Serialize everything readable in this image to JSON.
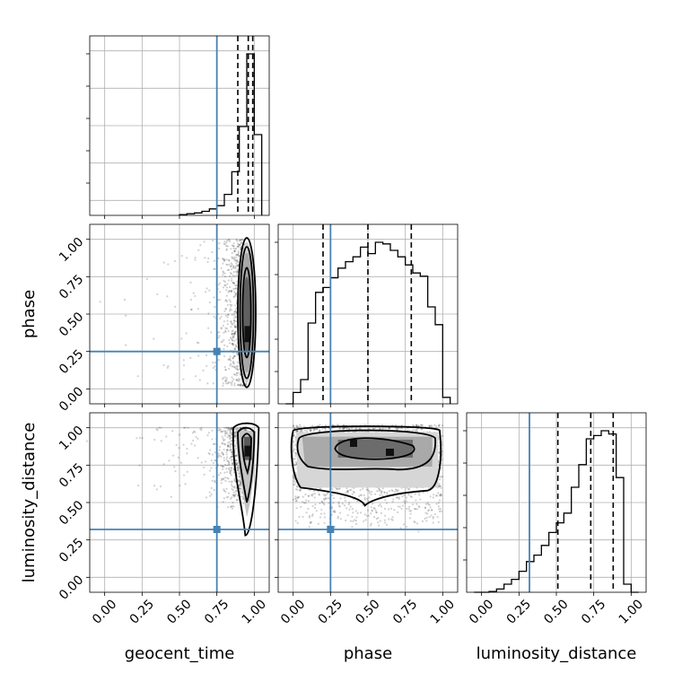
{
  "chart_data": {
    "type": "corner",
    "parameters": [
      "geocent_time",
      "phase",
      "luminosity_distance"
    ],
    "axis_labels": {
      "x": [
        "geocent_time",
        "phase",
        "luminosity_distance"
      ],
      "y": [
        "phase",
        "luminosity_distance"
      ]
    },
    "tick_values": [
      0.0,
      0.25,
      0.5,
      0.75,
      1.0
    ],
    "tick_labels": [
      "0.00",
      "0.25",
      "0.50",
      "0.75",
      "1.00"
    ],
    "axis_range": [
      -0.1,
      1.1
    ],
    "grid": true,
    "truth": {
      "geocent_time": 0.75,
      "phase": 0.25,
      "luminosity_distance": 0.32
    },
    "truth_color": "#4682b4",
    "histogram_color": "#000000",
    "histograms": [
      {
        "parameter": "geocent_time",
        "bin_edges": [
          0.5,
          0.55,
          0.6,
          0.65,
          0.7,
          0.75,
          0.8,
          0.85,
          0.9,
          0.95,
          1.0,
          1.05
        ],
        "density": [
          0.005,
          0.01,
          0.015,
          0.025,
          0.04,
          0.06,
          0.13,
          0.27,
          0.55,
          1.0,
          0.5
        ],
        "quantiles": [
          0.89,
          0.96,
          0.99
        ]
      },
      {
        "parameter": "phase",
        "bin_edges": [
          -0.05,
          0.0,
          0.05,
          0.1,
          0.15,
          0.2,
          0.25,
          0.3,
          0.35,
          0.4,
          0.45,
          0.5,
          0.55,
          0.6,
          0.65,
          0.7,
          0.75,
          0.8,
          0.85,
          0.9,
          0.95,
          1.0,
          1.05
        ],
        "density": [
          0.0,
          0.07,
          0.15,
          0.5,
          0.69,
          0.72,
          0.78,
          0.84,
          0.88,
          0.91,
          0.97,
          0.93,
          1.0,
          0.99,
          0.95,
          0.91,
          0.86,
          0.81,
          0.79,
          0.6,
          0.49,
          0.04
        ],
        "quantiles": [
          0.2,
          0.5,
          0.79
        ]
      },
      {
        "parameter": "luminosity_distance",
        "bin_edges": [
          -0.05,
          0.0,
          0.05,
          0.1,
          0.15,
          0.2,
          0.25,
          0.3,
          0.35,
          0.4,
          0.45,
          0.5,
          0.55,
          0.6,
          0.65,
          0.7,
          0.75,
          0.8,
          0.85,
          0.9,
          0.95,
          1.0,
          1.05
        ],
        "density": [
          0.0,
          0.0,
          0.005,
          0.02,
          0.05,
          0.08,
          0.13,
          0.19,
          0.23,
          0.29,
          0.37,
          0.43,
          0.49,
          0.65,
          0.79,
          0.95,
          0.97,
          1.0,
          0.98,
          0.71,
          0.05,
          0.0
        ],
        "quantiles": [
          0.51,
          0.73,
          0.88
        ]
      }
    ],
    "pairs": [
      {
        "x": "geocent_time",
        "y": "phase",
        "core": {
          "x_center": 0.95,
          "y_center": 0.5,
          "x_width": 0.08,
          "y_extent": [
            0.02,
            1.0
          ]
        }
      },
      {
        "x": "geocent_time",
        "y": "luminosity_distance",
        "core": {
          "x_center": 0.95,
          "y_center": 0.82,
          "x_width": 0.09,
          "y_extent": [
            0.26,
            1.0
          ]
        }
      },
      {
        "x": "phase",
        "y": "luminosity_distance",
        "core": {
          "x_center": 0.5,
          "y_center": 0.8,
          "x_extent": [
            0.0,
            1.0
          ],
          "y_extent": [
            0.55,
            1.0
          ]
        }
      }
    ]
  }
}
